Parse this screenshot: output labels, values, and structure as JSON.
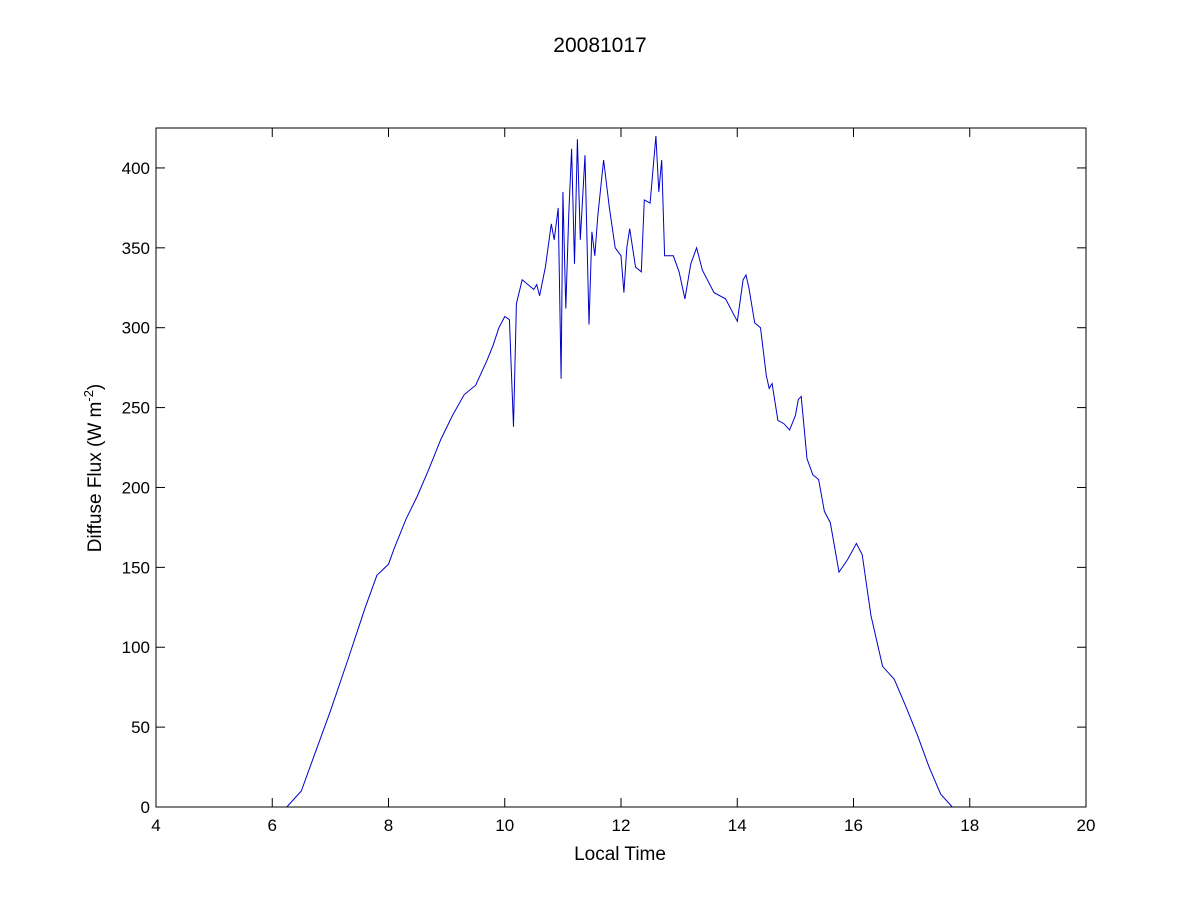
{
  "chart_data": {
    "type": "line",
    "title": "20081017",
    "xlabel": "Local Time",
    "ylabel": "Diffuse Flux (W m",
    "ylabel_sup": "-2",
    "ylabel_close": ")",
    "xlim": [
      4,
      20
    ],
    "ylim": [
      0,
      425
    ],
    "xticks": [
      4,
      6,
      8,
      10,
      12,
      14,
      16,
      18,
      20
    ],
    "yticks": [
      0,
      50,
      100,
      150,
      200,
      250,
      300,
      350,
      400
    ],
    "xtick_labels": [
      "4",
      "6",
      "8",
      "10",
      "12",
      "14",
      "16",
      "18",
      "20"
    ],
    "ytick_labels": [
      "0",
      "50",
      "100",
      "150",
      "200",
      "250",
      "300",
      "350",
      "400"
    ],
    "grid": false,
    "line_color": "#0000cc",
    "series": [
      {
        "x": [
          6.25,
          6.5,
          6.7,
          7.0,
          7.3,
          7.6,
          7.8,
          8.0,
          8.1,
          8.3,
          8.5,
          8.7,
          8.9,
          9.1,
          9.3,
          9.5,
          9.6,
          9.7,
          9.8,
          9.9,
          10.0,
          10.08,
          10.15,
          10.2,
          10.3,
          10.4,
          10.5,
          10.55,
          10.6,
          10.7,
          10.8,
          10.85,
          10.92,
          10.97,
          11.0,
          11.05,
          11.1,
          11.15,
          11.2,
          11.25,
          11.3,
          11.38,
          11.45,
          11.5,
          11.55,
          11.6,
          11.7,
          11.8,
          11.9,
          12.0,
          12.05,
          12.1,
          12.15,
          12.25,
          12.35,
          12.4,
          12.5,
          12.6,
          12.65,
          12.7,
          12.75,
          12.9,
          13.0,
          13.1,
          13.2,
          13.3,
          13.4,
          13.6,
          13.8,
          14.0,
          14.1,
          14.15,
          14.2,
          14.3,
          14.4,
          14.5,
          14.55,
          14.6,
          14.7,
          14.8,
          14.9,
          15.0,
          15.05,
          15.1,
          15.2,
          15.3,
          15.4,
          15.5,
          15.6,
          15.75,
          15.9,
          16.05,
          16.15,
          16.3,
          16.5,
          16.7,
          16.9,
          17.1,
          17.3,
          17.5,
          17.7
        ],
        "y": [
          0,
          10,
          30,
          60,
          92,
          125,
          145,
          152,
          162,
          180,
          195,
          212,
          230,
          245,
          258,
          264,
          272,
          280,
          289,
          300,
          307,
          305,
          238,
          315,
          330,
          327,
          324,
          327,
          320,
          338,
          365,
          355,
          375,
          268,
          385,
          312,
          370,
          412,
          340,
          418,
          355,
          408,
          302,
          360,
          345,
          370,
          405,
          375,
          350,
          345,
          322,
          350,
          362,
          338,
          335,
          380,
          378,
          420,
          385,
          405,
          345,
          345,
          335,
          318,
          340,
          350,
          336,
          322,
          318,
          304,
          330,
          333,
          325,
          303,
          300,
          270,
          262,
          265,
          242,
          240,
          236,
          245,
          255,
          257,
          218,
          208,
          205,
          185,
          178,
          147,
          155,
          165,
          158,
          120,
          88,
          80,
          63,
          45,
          25,
          8,
          0
        ]
      }
    ]
  }
}
